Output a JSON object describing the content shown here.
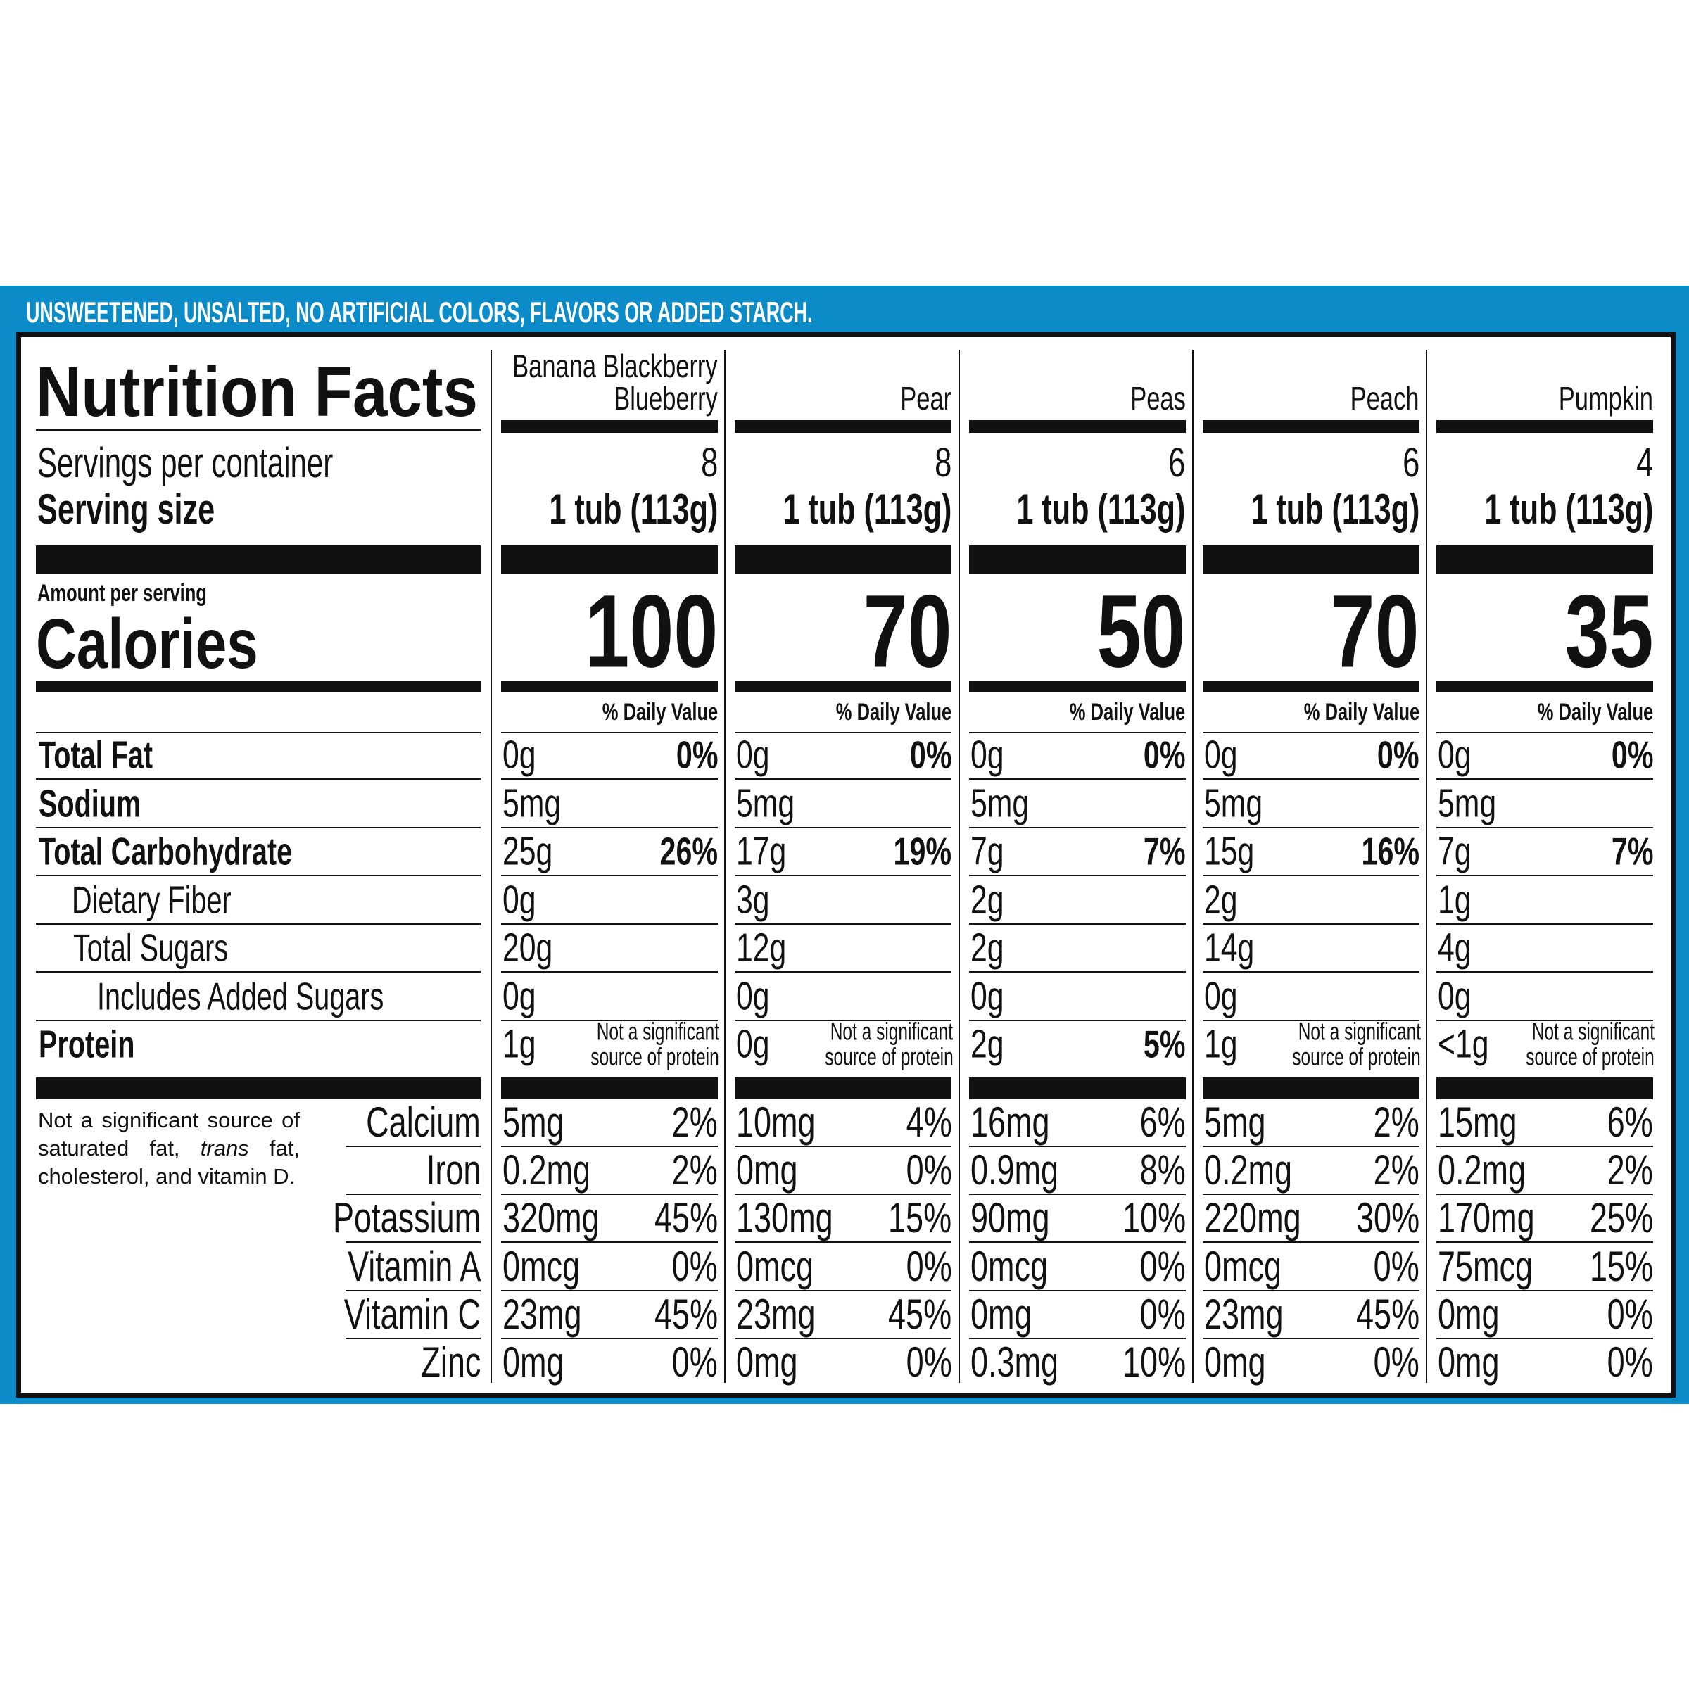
{
  "banner": "UNSWEETENED, UNSALTED, NO ARTIFICIAL COLORS, FLAVORS OR ADDED STARCH.",
  "label": {
    "title": "Nutrition Facts",
    "servings_label": "Servings per container",
    "serving_size_label": "Serving size",
    "amount_per_serving": "Amount per serving",
    "calories_label": "Calories",
    "nutrients": [
      "Total Fat",
      "Sodium",
      "Total Carbohydrate",
      "Dietary Fiber",
      "Total Sugars",
      "Includes Added Sugars",
      "Protein"
    ],
    "minerals": [
      "Calcium",
      "Iron",
      "Potassium",
      "Vitamin A",
      "Vitamin C",
      "Zinc"
    ],
    "footnote": [
      "Not a significant source of saturated fat, ",
      "trans",
      " fat, cholesterol, and vitamin D."
    ]
  },
  "products": [
    {
      "name_lines": [
        "Banana Blackberry",
        "Blueberry"
      ],
      "servings": 8,
      "serving_size": "1 tub (113g)",
      "calories": 100,
      "dv_header": "% Daily Value",
      "nutrients": [
        {
          "amount": "0g",
          "dv": "0%"
        },
        {
          "amount": "5mg"
        },
        {
          "amount": "25g",
          "dv": "26%"
        },
        {
          "amount": "0g"
        },
        {
          "amount": "20g"
        },
        {
          "amount": "0g"
        },
        {
          "amount": "1g",
          "note": [
            "Not a significant",
            "source of protein"
          ]
        }
      ],
      "minerals": [
        {
          "amount": "5mg",
          "dv": "2%"
        },
        {
          "amount": "0.2mg",
          "dv": "2%"
        },
        {
          "amount": "320mg",
          "dv": "45%"
        },
        {
          "amount": "0mcg",
          "dv": "0%"
        },
        {
          "amount": "23mg",
          "dv": "45%"
        },
        {
          "amount": "0mg",
          "dv": "0%"
        }
      ]
    },
    {
      "name_lines": [
        "Pear"
      ],
      "servings": 8,
      "serving_size": "1 tub (113g)",
      "calories": 70,
      "dv_header": "% Daily Value",
      "nutrients": [
        {
          "amount": "0g",
          "dv": "0%"
        },
        {
          "amount": "5mg"
        },
        {
          "amount": "17g",
          "dv": "19%"
        },
        {
          "amount": "3g"
        },
        {
          "amount": "12g"
        },
        {
          "amount": "0g"
        },
        {
          "amount": "0g",
          "note": [
            "Not a significant",
            "source of protein"
          ]
        }
      ],
      "minerals": [
        {
          "amount": "10mg",
          "dv": "4%"
        },
        {
          "amount": "0mg",
          "dv": "0%"
        },
        {
          "amount": "130mg",
          "dv": "15%"
        },
        {
          "amount": "0mcg",
          "dv": "0%"
        },
        {
          "amount": "23mg",
          "dv": "45%"
        },
        {
          "amount": "0mg",
          "dv": "0%"
        }
      ]
    },
    {
      "name_lines": [
        "Peas"
      ],
      "servings": 6,
      "serving_size": "1 tub (113g)",
      "calories": 50,
      "dv_header": "% Daily Value",
      "nutrients": [
        {
          "amount": "0g",
          "dv": "0%"
        },
        {
          "amount": "5mg"
        },
        {
          "amount": "7g",
          "dv": "7%"
        },
        {
          "amount": "2g"
        },
        {
          "amount": "2g"
        },
        {
          "amount": "0g"
        },
        {
          "amount": "2g",
          "dv": "5%"
        }
      ],
      "minerals": [
        {
          "amount": "16mg",
          "dv": "6%"
        },
        {
          "amount": "0.9mg",
          "dv": "8%"
        },
        {
          "amount": "90mg",
          "dv": "10%"
        },
        {
          "amount": "0mcg",
          "dv": "0%"
        },
        {
          "amount": "0mg",
          "dv": "0%"
        },
        {
          "amount": "0.3mg",
          "dv": "10%"
        }
      ]
    },
    {
      "name_lines": [
        "Peach"
      ],
      "servings": 6,
      "serving_size": "1 tub (113g)",
      "calories": 70,
      "dv_header": "% Daily Value",
      "nutrients": [
        {
          "amount": "0g",
          "dv": "0%"
        },
        {
          "amount": "5mg"
        },
        {
          "amount": "15g",
          "dv": "16%"
        },
        {
          "amount": "2g"
        },
        {
          "amount": "14g"
        },
        {
          "amount": "0g"
        },
        {
          "amount": "1g",
          "note": [
            "Not a significant",
            "source of protein"
          ]
        }
      ],
      "minerals": [
        {
          "amount": "5mg",
          "dv": "2%"
        },
        {
          "amount": "0.2mg",
          "dv": "2%"
        },
        {
          "amount": "220mg",
          "dv": "30%"
        },
        {
          "amount": "0mcg",
          "dv": "0%"
        },
        {
          "amount": "23mg",
          "dv": "45%"
        },
        {
          "amount": "0mg",
          "dv": "0%"
        }
      ]
    },
    {
      "name_lines": [
        "Pumpkin"
      ],
      "servings": 4,
      "serving_size": "1 tub (113g)",
      "calories": 35,
      "dv_header": "% Daily Value",
      "nutrients": [
        {
          "amount": "0g",
          "dv": "0%"
        },
        {
          "amount": "5mg"
        },
        {
          "amount": "7g",
          "dv": "7%"
        },
        {
          "amount": "1g"
        },
        {
          "amount": "4g"
        },
        {
          "amount": "0g"
        },
        {
          "amount": "<1g",
          "note": [
            "Not a significant",
            "source of protein"
          ]
        }
      ],
      "minerals": [
        {
          "amount": "15mg",
          "dv": "6%"
        },
        {
          "amount": "0.2mg",
          "dv": "2%"
        },
        {
          "amount": "170mg",
          "dv": "25%"
        },
        {
          "amount": "75mcg",
          "dv": "15%"
        },
        {
          "amount": "0mg",
          "dv": "0%"
        },
        {
          "amount": "0mg",
          "dv": "0%"
        }
      ]
    }
  ]
}
